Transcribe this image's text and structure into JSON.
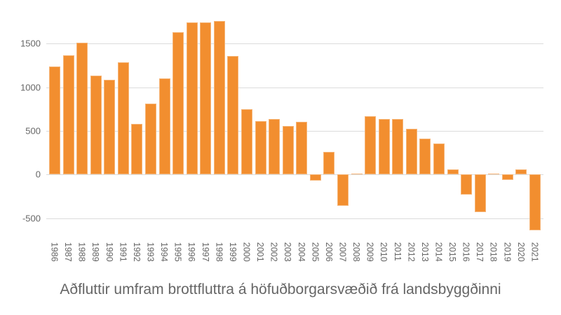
{
  "chart_data": {
    "type": "bar",
    "title": "Aðfluttir umfram brottfluttra á höfuðborgarsvæðið frá landsbyggðinni",
    "xlabel": "",
    "ylabel": "",
    "ylim": [
      -650,
      1800
    ],
    "yticks": [
      -500,
      0,
      500,
      1000,
      1500
    ],
    "ytick_labels": [
      "-500",
      "0",
      "500",
      "1000",
      "1500"
    ],
    "grid": true,
    "legend": null,
    "bar_color": "#f28e2f",
    "categories": [
      "1986",
      "1987",
      "1988",
      "1989",
      "1990",
      "1991",
      "1992",
      "1993",
      "1994",
      "1995",
      "1996",
      "1997",
      "1998",
      "1999",
      "2000",
      "2001",
      "2002",
      "2003",
      "2004",
      "2005",
      "2006",
      "2007",
      "2008",
      "2009",
      "2010",
      "2011",
      "2012",
      "2013",
      "2014",
      "2015",
      "2016",
      "2017",
      "2018",
      "2019",
      "2020",
      "2021"
    ],
    "values": [
      1240,
      1363,
      1512,
      1133,
      1082,
      1285,
      577,
      815,
      1104,
      1630,
      1745,
      1740,
      1758,
      1355,
      749,
      612,
      633,
      556,
      606,
      -72,
      257,
      -356,
      10,
      665,
      638,
      636,
      524,
      409,
      355,
      56,
      -233,
      -428,
      5,
      -59,
      61,
      -642
    ]
  }
}
